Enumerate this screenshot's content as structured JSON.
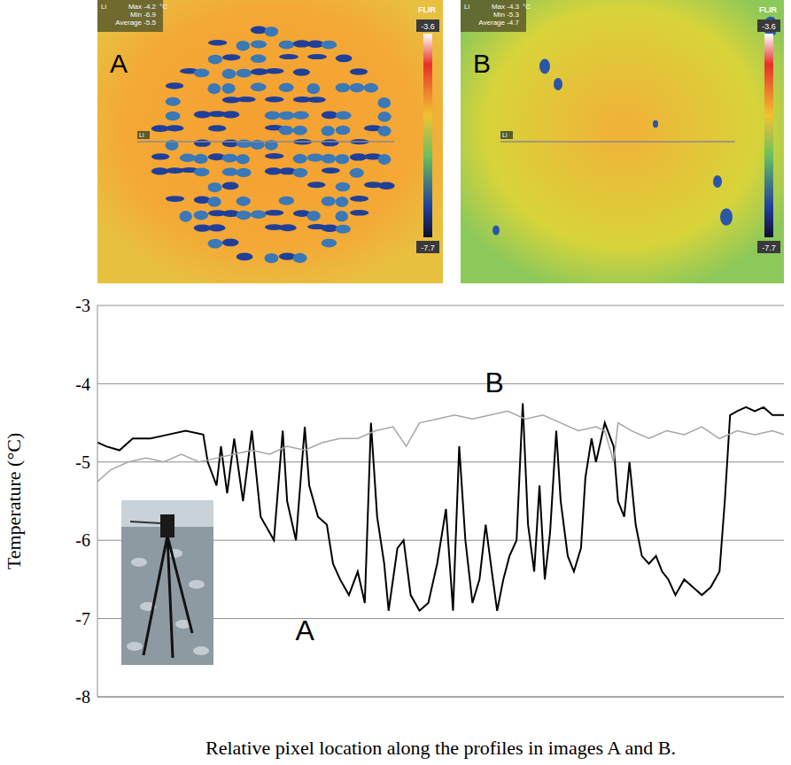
{
  "images": [
    {
      "label": "A",
      "line_label": "Li",
      "stats": [
        "Max -4.2",
        "Min -6.9",
        "Average -5.5"
      ],
      "unit": "°C",
      "logo": "FLIR",
      "colorbar": [
        "-3.6",
        "-7.7"
      ]
    },
    {
      "label": "B",
      "line_label": "Li",
      "stats": [
        "Max -4.3",
        "Min -5.3",
        "Average -4.7"
      ],
      "unit": "°C",
      "logo": "FLIR",
      "colorbar": [
        "-3.6",
        "-7.7"
      ]
    }
  ],
  "chart_data": {
    "type": "line",
    "y_label": "Temperature (°C)",
    "x_label": "Relative pixel location along the profiles in images A and B.",
    "xlim": [
      0,
      778
    ],
    "ylim": [
      -8,
      -3
    ],
    "yticks": [
      -8,
      -7,
      -6,
      -5,
      -4,
      -3
    ],
    "grid": true,
    "tick_labels": "y",
    "series": [
      {
        "name": "A",
        "color": "#000000",
        "x": [
          0,
          10,
          25,
          40,
          60,
          80,
          100,
          120,
          125,
          135,
          140,
          147,
          155,
          165,
          175,
          185,
          195,
          200,
          210,
          215,
          225,
          235,
          240,
          250,
          260,
          267,
          275,
          285,
          295,
          303,
          310,
          317,
          325,
          330,
          340,
          347,
          355,
          365,
          375,
          385,
          395,
          403,
          410,
          417,
          425,
          433,
          440,
          447,
          453,
          460,
          467,
          475,
          482,
          488,
          495,
          501,
          507,
          513,
          520,
          525,
          533,
          540,
          548,
          553,
          560,
          565,
          575,
          585,
          590,
          597,
          603,
          610,
          617,
          625,
          633,
          640,
          647,
          655,
          665,
          675,
          685,
          695,
          705,
          711,
          717,
          725,
          735,
          745,
          755,
          765,
          778
        ],
        "values": [
          -4.75,
          -4.8,
          -4.85,
          -4.7,
          -4.7,
          -4.65,
          -4.6,
          -4.65,
          -5.0,
          -5.3,
          -4.8,
          -5.4,
          -4.7,
          -5.5,
          -4.6,
          -5.7,
          -5.9,
          -6.0,
          -4.6,
          -5.5,
          -6.0,
          -4.55,
          -5.3,
          -5.7,
          -5.8,
          -6.3,
          -6.5,
          -6.7,
          -6.4,
          -6.8,
          -4.5,
          -5.7,
          -6.3,
          -6.9,
          -6.1,
          -6.0,
          -6.7,
          -6.9,
          -6.8,
          -6.3,
          -5.6,
          -6.9,
          -4.8,
          -6.0,
          -6.8,
          -6.5,
          -5.8,
          -6.4,
          -6.9,
          -6.5,
          -6.2,
          -6.0,
          -4.25,
          -5.8,
          -6.4,
          -5.3,
          -6.5,
          -5.9,
          -4.6,
          -5.5,
          -6.2,
          -6.4,
          -6.1,
          -5.2,
          -4.7,
          -5.0,
          -4.5,
          -4.8,
          -5.5,
          -5.7,
          -5.0,
          -5.8,
          -6.2,
          -6.3,
          -6.2,
          -6.4,
          -6.5,
          -6.7,
          -6.5,
          -6.6,
          -6.7,
          -6.6,
          -6.4,
          -5.5,
          -4.4,
          -4.35,
          -4.3,
          -4.35,
          -4.3,
          -4.4,
          -4.4
        ]
      },
      {
        "name": "B",
        "color": "#a6a6a6",
        "x": [
          0,
          15,
          35,
          55,
          75,
          95,
          115,
          135,
          155,
          175,
          195,
          215,
          235,
          255,
          275,
          295,
          315,
          335,
          350,
          365,
          385,
          405,
          425,
          445,
          465,
          485,
          505,
          525,
          545,
          565,
          575,
          585,
          590,
          605,
          625,
          645,
          665,
          685,
          705,
          725,
          745,
          765,
          778
        ],
        "values": [
          -5.25,
          -5.1,
          -5.0,
          -4.95,
          -5.0,
          -4.9,
          -5.0,
          -4.95,
          -4.9,
          -4.85,
          -4.9,
          -4.8,
          -4.85,
          -4.75,
          -4.7,
          -4.7,
          -4.6,
          -4.55,
          -4.8,
          -4.5,
          -4.45,
          -4.4,
          -4.45,
          -4.4,
          -4.35,
          -4.45,
          -4.4,
          -4.5,
          -4.6,
          -4.55,
          -4.6,
          -5.0,
          -4.5,
          -4.6,
          -4.7,
          -4.6,
          -4.65,
          -4.55,
          -4.7,
          -4.6,
          -4.65,
          -4.6,
          -4.65
        ]
      }
    ],
    "annotations": [
      {
        "text": "A",
        "x": 235,
        "y": -7.15
      },
      {
        "text": "B",
        "x": 450,
        "y": -3.98
      }
    ]
  }
}
